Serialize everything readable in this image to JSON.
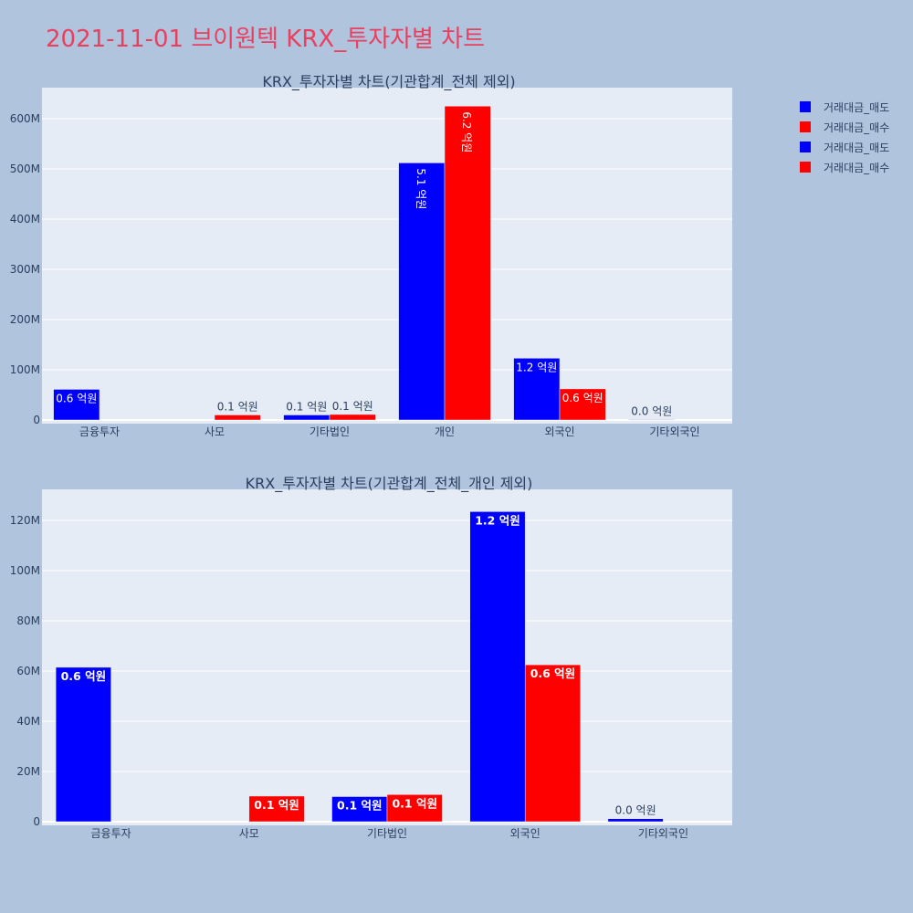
{
  "page_title": "2021-11-01 브이원텍 KRX_투자자별 차트",
  "legend": [
    {
      "label": "거래대금_매도",
      "color": "#0000ff"
    },
    {
      "label": "거래대금_매수",
      "color": "#ff0000"
    },
    {
      "label": "거래대금_매도",
      "color": "#0000ff"
    },
    {
      "label": "거래대금_매수",
      "color": "#ff0000"
    }
  ],
  "chart_data": [
    {
      "type": "bar",
      "title": "KRX_투자자별 차트(기관합계_전체 제외)",
      "categories": [
        "금융투자",
        "사모",
        "기타법인",
        "개인",
        "외국인",
        "기타외국인"
      ],
      "yticks": [
        "0",
        "100M",
        "200M",
        "300M",
        "400M",
        "500M",
        "600M"
      ],
      "ylim": [
        0,
        660
      ],
      "series": [
        {
          "name": "거래대금_매도",
          "color": "#0000ff",
          "values": [
            61,
            0,
            10,
            512,
            123,
            1
          ],
          "labels": [
            "0.6 억원",
            "",
            "0.1 억원",
            "5.1 억원",
            "1.2 억원",
            "0.0 억원"
          ]
        },
        {
          "name": "거래대금_매수",
          "color": "#ff0000",
          "values": [
            0,
            10,
            11,
            625,
            62,
            0
          ],
          "labels": [
            "",
            "0.1 억원",
            "0.1 억원",
            "6.2 억원",
            "0.6 억원",
            ""
          ]
        }
      ]
    },
    {
      "type": "bar",
      "title": "KRX_투자자별 차트(기관합계_전체_개인 제외)",
      "categories": [
        "금융투자",
        "사모",
        "기타법인",
        "외국인",
        "기타외국인"
      ],
      "yticks": [
        "0",
        "20M",
        "40M",
        "60M",
        "80M",
        "100M",
        "120M"
      ],
      "ylim": [
        0,
        132
      ],
      "series": [
        {
          "name": "거래대금_매도",
          "color": "#0000ff",
          "values": [
            61.5,
            0,
            10,
            123.5,
            1.2
          ],
          "labels": [
            "0.6 억원",
            "",
            "0.1 억원",
            "1.2 억원",
            "0.0 억원"
          ]
        },
        {
          "name": "거래대금_매수",
          "color": "#ff0000",
          "values": [
            0,
            10.2,
            10.8,
            62.5,
            0
          ],
          "labels": [
            "",
            "0.1 억원",
            "0.1 억원",
            "0.6 억원",
            ""
          ]
        }
      ]
    }
  ]
}
